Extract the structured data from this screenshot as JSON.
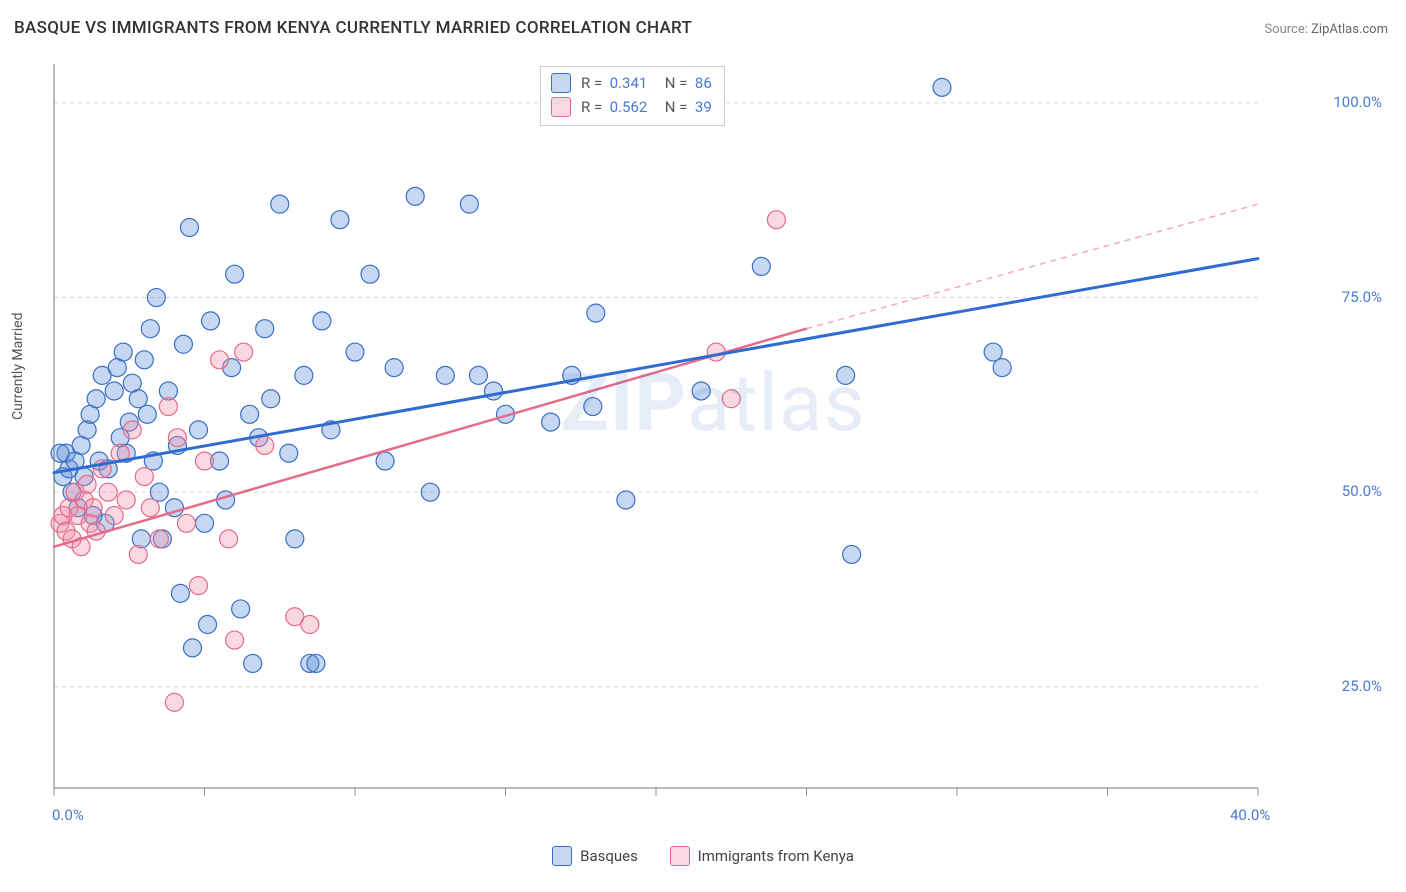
{
  "title": "BASQUE VS IMMIGRANTS FROM KENYA CURRENTLY MARRIED CORRELATION CHART",
  "source_label": "Source:",
  "source_value": "ZipAtlas.com",
  "y_axis_label": "Currently Married",
  "watermark_bold": "ZIP",
  "watermark_rest": "atlas",
  "chart": {
    "type": "scatter",
    "background_color": "#ffffff",
    "grid_color": "#d6d6d6",
    "axis_color": "#8f8f8f",
    "tick_color": "#8f8f8f",
    "label_color": "#4a7ad1",
    "xlim": [
      0,
      40
    ],
    "ylim": [
      12,
      105
    ],
    "x_ticks": [
      0,
      5,
      10,
      15,
      20,
      25,
      30,
      35,
      40
    ],
    "x_tick_labels": {
      "0": "0.0%",
      "40": "40.0%"
    },
    "y_ticks": [
      25,
      50,
      75,
      100
    ],
    "y_tick_labels": {
      "25": "25.0%",
      "50": "50.0%",
      "75": "75.0%",
      "100": "100.0%"
    },
    "marker_radius": 9,
    "marker_stroke_width": 1.2,
    "marker_fill_opacity": 0.35,
    "series": [
      {
        "key": "basques",
        "label": "Basques",
        "color": "#5a8cd6",
        "stroke": "#3b6fc4",
        "R": "0.341",
        "N": "86",
        "trend": {
          "x1": 0,
          "y1": 52.5,
          "x2": 40,
          "y2": 80,
          "width": 3,
          "color": "#2f6bd0"
        },
        "points": [
          [
            0.3,
            52
          ],
          [
            0.5,
            53
          ],
          [
            0.4,
            55
          ],
          [
            0.6,
            50
          ],
          [
            0.7,
            54
          ],
          [
            0.8,
            48
          ],
          [
            0.9,
            56
          ],
          [
            1.0,
            52
          ],
          [
            1.1,
            58
          ],
          [
            1.2,
            60
          ],
          [
            1.3,
            47
          ],
          [
            1.4,
            62
          ],
          [
            1.5,
            54
          ],
          [
            1.6,
            65
          ],
          [
            1.8,
            53
          ],
          [
            2.0,
            63
          ],
          [
            2.1,
            66
          ],
          [
            2.2,
            57
          ],
          [
            2.3,
            68
          ],
          [
            2.4,
            55
          ],
          [
            2.5,
            59
          ],
          [
            2.6,
            64
          ],
          [
            2.8,
            62
          ],
          [
            3.0,
            67
          ],
          [
            3.1,
            60
          ],
          [
            3.3,
            54
          ],
          [
            3.4,
            75
          ],
          [
            3.5,
            50
          ],
          [
            3.6,
            44
          ],
          [
            3.8,
            63
          ],
          [
            4.0,
            48
          ],
          [
            4.1,
            56
          ],
          [
            4.3,
            69
          ],
          [
            4.5,
            84
          ],
          [
            4.6,
            30
          ],
          [
            4.8,
            58
          ],
          [
            5.0,
            46
          ],
          [
            5.2,
            72
          ],
          [
            5.5,
            54
          ],
          [
            5.7,
            49
          ],
          [
            5.9,
            66
          ],
          [
            6.0,
            78
          ],
          [
            6.2,
            35
          ],
          [
            6.5,
            60
          ],
          [
            6.8,
            57
          ],
          [
            7.0,
            71
          ],
          [
            7.2,
            62
          ],
          [
            7.5,
            87
          ],
          [
            7.8,
            55
          ],
          [
            8.0,
            44
          ],
          [
            8.3,
            65
          ],
          [
            8.5,
            28
          ],
          [
            8.9,
            72
          ],
          [
            9.2,
            58
          ],
          [
            9.5,
            85
          ],
          [
            10.0,
            68
          ],
          [
            10.5,
            78
          ],
          [
            11.0,
            54
          ],
          [
            11.3,
            66
          ],
          [
            12.0,
            88
          ],
          [
            12.5,
            50
          ],
          [
            13.0,
            65
          ],
          [
            13.8,
            87
          ],
          [
            14.1,
            65
          ],
          [
            14.6,
            63
          ],
          [
            15.0,
            60
          ],
          [
            16.5,
            59
          ],
          [
            17.2,
            65
          ],
          [
            17.9,
            61
          ],
          [
            18.0,
            73
          ],
          [
            19.0,
            49
          ],
          [
            21.5,
            63
          ],
          [
            23.5,
            79
          ],
          [
            26.5,
            42
          ],
          [
            26.3,
            65
          ],
          [
            29.5,
            102
          ],
          [
            31.5,
            66
          ],
          [
            31.2,
            68
          ],
          [
            6.6,
            28
          ],
          [
            8.7,
            28
          ],
          [
            4.2,
            37
          ],
          [
            5.1,
            33
          ],
          [
            1.7,
            46
          ],
          [
            2.9,
            44
          ],
          [
            3.2,
            71
          ],
          [
            0.2,
            55
          ]
        ]
      },
      {
        "key": "kenya",
        "label": "Immigrants from Kenya",
        "color": "#f090a8",
        "stroke": "#e56b8a",
        "R": "0.562",
        "N": "39",
        "trend_solid": {
          "x1": 0,
          "y1": 43,
          "x2": 25,
          "y2": 71,
          "width": 2.5,
          "color": "#e56b8a"
        },
        "trend_dash": {
          "x1": 25,
          "y1": 71,
          "x2": 40,
          "y2": 87,
          "width": 1.5,
          "color": "#f5a9bc",
          "dash": "6,5"
        },
        "points": [
          [
            0.2,
            46
          ],
          [
            0.3,
            47
          ],
          [
            0.4,
            45
          ],
          [
            0.5,
            48
          ],
          [
            0.6,
            44
          ],
          [
            0.7,
            50
          ],
          [
            0.8,
            47
          ],
          [
            0.9,
            43
          ],
          [
            1.0,
            49
          ],
          [
            1.1,
            51
          ],
          [
            1.2,
            46
          ],
          [
            1.3,
            48
          ],
          [
            1.4,
            45
          ],
          [
            1.6,
            53
          ],
          [
            1.8,
            50
          ],
          [
            2.0,
            47
          ],
          [
            2.2,
            55
          ],
          [
            2.4,
            49
          ],
          [
            2.6,
            58
          ],
          [
            2.8,
            42
          ],
          [
            3.0,
            52
          ],
          [
            3.2,
            48
          ],
          [
            3.5,
            44
          ],
          [
            3.8,
            61
          ],
          [
            4.0,
            23
          ],
          [
            4.1,
            57
          ],
          [
            4.4,
            46
          ],
          [
            4.8,
            38
          ],
          [
            5.0,
            54
          ],
          [
            5.5,
            67
          ],
          [
            5.8,
            44
          ],
          [
            6.0,
            31
          ],
          [
            6.3,
            68
          ],
          [
            7.0,
            56
          ],
          [
            8.0,
            34
          ],
          [
            8.5,
            33
          ],
          [
            22.0,
            68
          ],
          [
            22.5,
            62
          ],
          [
            24.0,
            85
          ]
        ]
      }
    ],
    "legend_top": {
      "R_label": "R  =",
      "N_label": "N  ="
    },
    "legend_bottom": [
      {
        "seriesKey": "basques"
      },
      {
        "seriesKey": "kenya"
      }
    ]
  }
}
